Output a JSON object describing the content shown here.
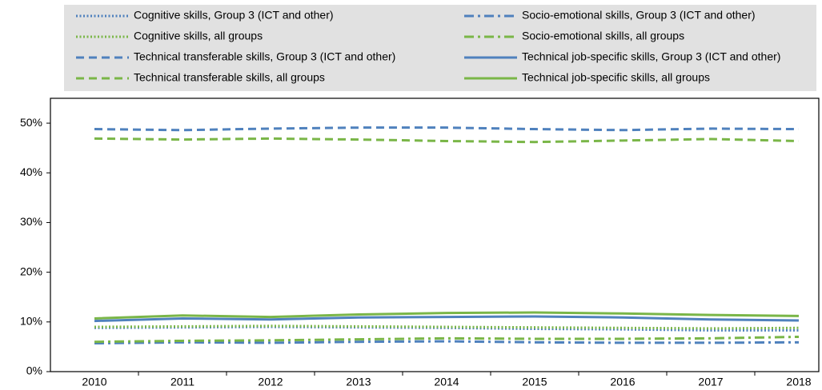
{
  "chart_data": {
    "type": "line",
    "categories": [
      "2010",
      "2011",
      "2012",
      "2013",
      "2014",
      "2015",
      "2016",
      "2017",
      "2018"
    ],
    "ylim": [
      0,
      55
    ],
    "yticks": [
      {
        "value": 0,
        "label": "0%"
      },
      {
        "value": 10,
        "label": "10%"
      },
      {
        "value": 20,
        "label": "20%"
      },
      {
        "value": 30,
        "label": "30%"
      },
      {
        "value": 40,
        "label": "40%"
      },
      {
        "value": 50,
        "label": "50%"
      }
    ],
    "series": [
      {
        "name": "Cognitive skills, Group 3 (ICT and other)",
        "color": "#4f81bd",
        "dash": "dotted",
        "values": [
          8.8,
          8.9,
          9.0,
          8.9,
          8.8,
          8.6,
          8.5,
          8.3,
          8.3
        ]
      },
      {
        "name": "Cognitive skills, all groups",
        "color": "#7ab648",
        "dash": "dotted",
        "values": [
          9.0,
          9.1,
          9.2,
          9.1,
          9.0,
          8.9,
          8.8,
          8.7,
          8.8
        ]
      },
      {
        "name": "Technical transferable skills, Group 3 (ICT and other)",
        "color": "#4f81bd",
        "dash": "dashed",
        "values": [
          48.8,
          48.6,
          48.9,
          49.1,
          49.1,
          48.8,
          48.6,
          48.9,
          48.8
        ]
      },
      {
        "name": "Technical transferable skills, all groups",
        "color": "#7ab648",
        "dash": "dashed",
        "values": [
          46.9,
          46.7,
          46.9,
          46.7,
          46.4,
          46.2,
          46.5,
          46.8,
          46.4
        ]
      },
      {
        "name": "Socio-emotional skills, Group 3 (ICT and other)",
        "color": "#4f81bd",
        "dash": "dashdot",
        "values": [
          5.7,
          5.9,
          5.8,
          6.0,
          6.1,
          5.9,
          5.8,
          5.8,
          5.9
        ]
      },
      {
        "name": "Socio-emotional skills, all groups",
        "color": "#7ab648",
        "dash": "dashdot",
        "values": [
          6.0,
          6.2,
          6.3,
          6.5,
          6.7,
          6.6,
          6.6,
          6.7,
          7.0
        ]
      },
      {
        "name": "Technical job-specific skills, Group 3 (ICT and other)",
        "color": "#4f81bd",
        "dash": "solid",
        "values": [
          10.2,
          10.7,
          10.5,
          10.9,
          11.0,
          11.1,
          10.9,
          10.5,
          10.3
        ]
      },
      {
        "name": "Technical job-specific skills, all groups",
        "color": "#7ab648",
        "dash": "solid",
        "values": [
          10.7,
          11.3,
          11.0,
          11.5,
          11.8,
          11.9,
          11.7,
          11.4,
          11.2
        ]
      }
    ]
  }
}
